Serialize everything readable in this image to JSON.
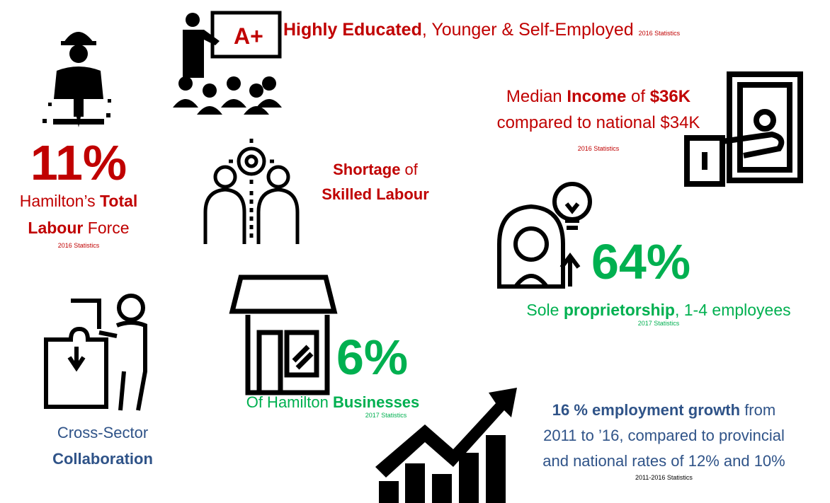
{
  "education": {
    "lines": [
      [
        "Highly Educated",
        ", Younger & Self-Employed"
      ]
    ],
    "source": "2016 Statistics"
  },
  "labour_force": {
    "stat": "11%",
    "lines": [
      [
        "Hamilton’s ",
        "Total"
      ],
      [
        "Labour",
        " Force"
      ]
    ],
    "source": "2016 Statistics"
  },
  "income": {
    "lines": [
      [
        "Median ",
        "Income",
        " of ",
        "$36K"
      ],
      [
        "compared to national $34K"
      ]
    ],
    "source": "2016 Statistics"
  },
  "shortage": {
    "lines": [
      [
        "Shortage",
        " of"
      ],
      [
        "Skilled Labour"
      ]
    ]
  },
  "proprietorship": {
    "stat": "64%",
    "lines": [
      [
        "Sole ",
        "proprietorship",
        ", 1-4 employees"
      ]
    ],
    "source": "2017 Statistics"
  },
  "businesses": {
    "stat": "6%",
    "lines": [
      [
        "Of Hamilton ",
        "Businesses"
      ]
    ],
    "source": "2017 Statistics"
  },
  "collaboration": {
    "lines": [
      [
        "Cross-Sector"
      ],
      [
        "Collaboration"
      ]
    ]
  },
  "growth": {
    "lines": [
      [
        "16 % employment growth",
        " from"
      ],
      [
        "2011 to ’16, compared to provincial"
      ],
      [
        "and national rates of 12% and 10%"
      ]
    ],
    "source": "2011-2016 Statistics"
  }
}
